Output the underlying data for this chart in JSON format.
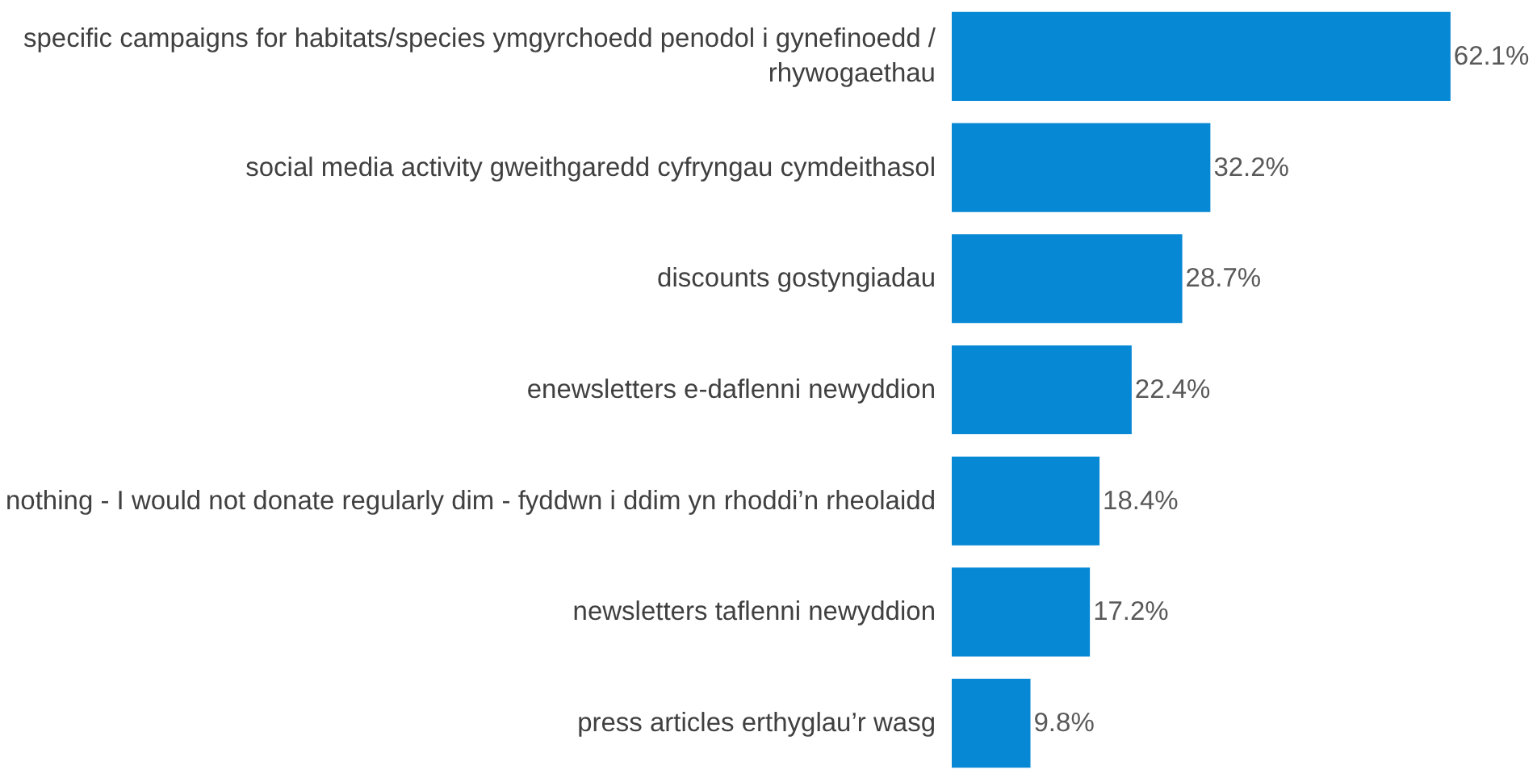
{
  "chart_data": {
    "type": "bar",
    "orientation": "horizontal",
    "categories": [
      "specific campaigns for habitats/species ymgyrchoedd penodol i gynefinoedd / rhywogaethau",
      "social media activity gweithgaredd cyfryngau cymdeithasol",
      "discounts gostyngiadau",
      "enewsletters e-daflenni newyddion",
      "nothing - I would not donate regularly dim - fyddwn i ddim yn rhoddi’n rheolaidd",
      "newsletters taflenni newyddion",
      "press articles erthyglau’r wasg"
    ],
    "values": [
      62.1,
      32.2,
      28.7,
      22.4,
      18.4,
      17.2,
      9.8
    ],
    "value_labels": [
      "62.1%",
      "32.2%",
      "28.7%",
      "22.4%",
      "18.4%",
      "17.2%",
      "9.8%"
    ],
    "color": "#0688d4",
    "tick_labels": "y",
    "grid": false
  }
}
